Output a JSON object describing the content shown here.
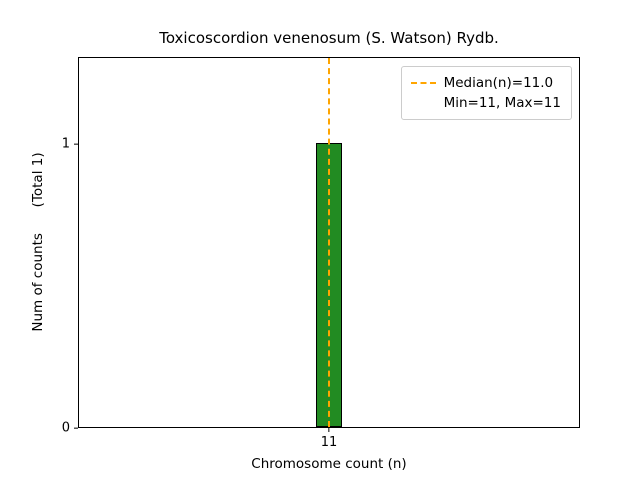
{
  "chart_data": {
    "type": "bar",
    "title": "Toxicoscordion venenosum (S. Watson) Rydb.",
    "xlabel": "Chromosome count (n)",
    "ylabel": "Num of counts      (Total 1)",
    "ylabel_parts": [
      "Num of counts",
      "(Total 1)"
    ],
    "categories": [
      "11"
    ],
    "values": [
      1
    ],
    "total": 1,
    "xtick_labels": [
      "11"
    ],
    "yticks": [
      "0",
      "1"
    ],
    "ytick_values": [
      0,
      1
    ],
    "ylim": [
      0,
      1.3
    ],
    "grid": false,
    "bar_color": "#228B22",
    "bar_edge_color": "#000000",
    "median": 11.0,
    "min": 11,
    "max": 11,
    "median_line_color": "#FFA500",
    "legend": {
      "position": "upper right",
      "entries": [
        {
          "label": "Median(n)=11.0",
          "marker": "dashed-line",
          "color": "#FFA500"
        },
        {
          "label": "Min=11, Max=11",
          "marker": "none"
        }
      ]
    }
  }
}
